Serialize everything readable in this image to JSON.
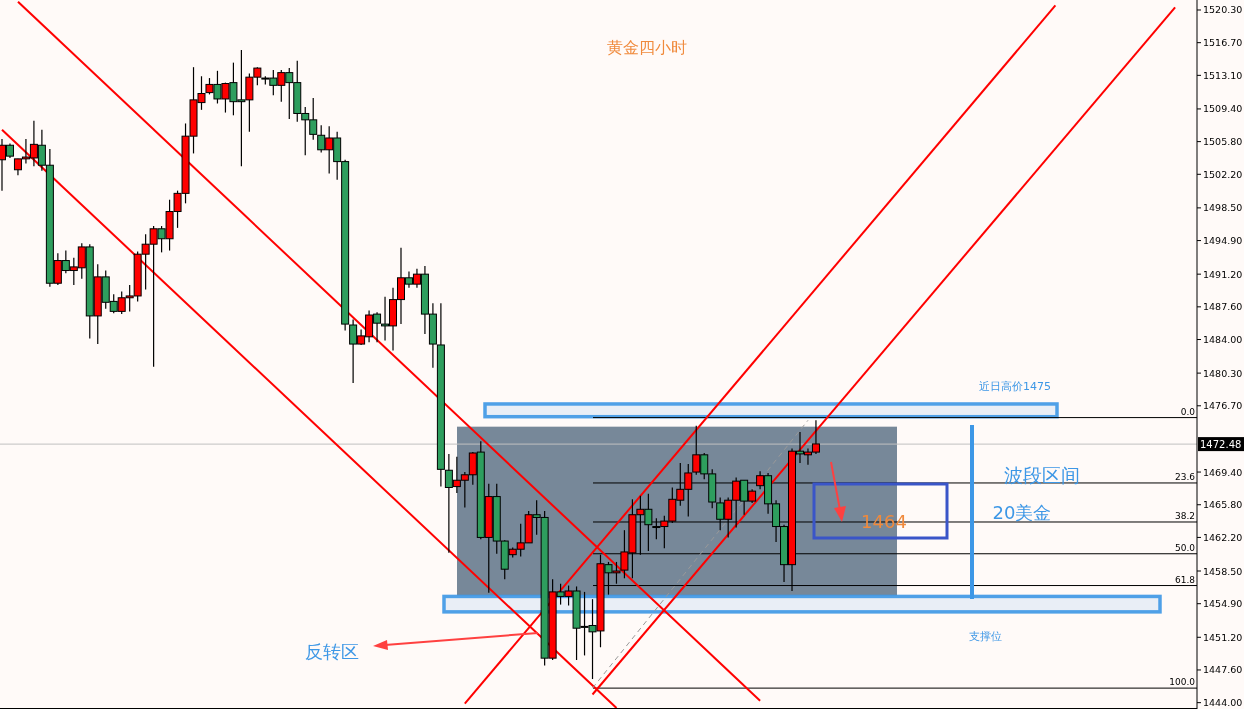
{
  "chart_data": {
    "type": "candlestick",
    "title": "黄金四小时",
    "categories": [
      null,
      null,
      null,
      null,
      null,
      null,
      null,
      null,
      null,
      null,
      null,
      null,
      null,
      null,
      null,
      null,
      null,
      null,
      null,
      null,
      null,
      null,
      null,
      null,
      null,
      null,
      null,
      null,
      null,
      null,
      null,
      null,
      null,
      null,
      null,
      null,
      null,
      null,
      null,
      null,
      null,
      null,
      null,
      null,
      null,
      null,
      null,
      null,
      null,
      null,
      null,
      null,
      null,
      null,
      null,
      null,
      null,
      null,
      null,
      null,
      null,
      null,
      null,
      null,
      null,
      null,
      null,
      null,
      null,
      null,
      null,
      null,
      null,
      null,
      null,
      null,
      null,
      null,
      null,
      null,
      null,
      null,
      null,
      null,
      null,
      null,
      null,
      null,
      null,
      null,
      null,
      null,
      null,
      null,
      null,
      null,
      null,
      null,
      null,
      null,
      null,
      null,
      null,
      null,
      null,
      null,
      null,
      null,
      null,
      null,
      null,
      null,
      null,
      null,
      null,
      null,
      null,
      null,
      null,
      null,
      null,
      null,
      null,
      null,
      null,
      null,
      null,
      null,
      null,
      null,
      null,
      null,
      null,
      null,
      null,
      null,
      null,
      null,
      null,
      null,
      null,
      null,
      null,
      null,
      null,
      null,
      null,
      null,
      null,
      null
    ],
    "ohlc": [
      [
        1503.8,
        1506.1,
        1500.4,
        1505.4
      ],
      [
        1505.4,
        1505.6,
        1504.0,
        1504.2
      ],
      [
        1502.7,
        1503.9,
        1502.1,
        1503.9
      ],
      [
        1503.9,
        1506.1,
        1503.4,
        1504.1
      ],
      [
        1504.0,
        1508.1,
        1503.1,
        1505.5
      ],
      [
        1505.4,
        1507.1,
        1502.6,
        1503.2
      ],
      [
        1503.2,
        1505.0,
        1489.8,
        1490.2
      ],
      [
        1490.2,
        1493.5,
        1490.0,
        1492.7
      ],
      [
        1492.7,
        1493.8,
        1491.3,
        1491.6
      ],
      [
        1491.6,
        1493.0,
        1490.0,
        1492.0
      ],
      [
        1491.9,
        1494.6,
        1490.7,
        1494.2
      ],
      [
        1494.2,
        1494.5,
        1484.1,
        1486.6
      ],
      [
        1486.6,
        1492.3,
        1483.5,
        1490.9
      ],
      [
        1490.9,
        1491.6,
        1487.4,
        1488.1
      ],
      [
        1488.2,
        1489.0,
        1486.9,
        1487.1
      ],
      [
        1487.1,
        1489.3,
        1486.8,
        1488.6
      ],
      [
        1488.6,
        1490.0,
        1487.1,
        1488.8
      ],
      [
        1488.8,
        1493.7,
        1488.2,
        1493.4
      ],
      [
        1493.4,
        1495.6,
        1489.5,
        1494.5
      ],
      [
        1494.5,
        1496.5,
        1481.0,
        1496.2
      ],
      [
        1496.2,
        1496.5,
        1493.6,
        1495.1
      ],
      [
        1495.1,
        1499.4,
        1493.8,
        1498.1
      ],
      [
        1498.1,
        1500.4,
        1496.3,
        1500.1
      ],
      [
        1500.1,
        1507.8,
        1499.0,
        1506.4
      ],
      [
        1506.4,
        1514.0,
        1504.5,
        1510.4
      ],
      [
        1510.1,
        1513.0,
        1509.3,
        1511.1
      ],
      [
        1511.2,
        1512.8,
        1511.0,
        1512.1
      ],
      [
        1512.1,
        1513.6,
        1510.0,
        1510.5
      ],
      [
        1510.5,
        1512.3,
        1509.0,
        1512.2
      ],
      [
        1512.3,
        1514.5,
        1508.7,
        1510.2
      ],
      [
        1510.4,
        1515.9,
        1503.1,
        1510.2
      ],
      [
        1510.4,
        1513.3,
        1506.9,
        1512.9
      ],
      [
        1512.9,
        1514.0,
        1512.0,
        1513.9
      ],
      [
        1512.8,
        1513.0,
        1512.1,
        1512.8
      ],
      [
        1512.8,
        1513.7,
        1510.9,
        1512.0
      ],
      [
        1512.0,
        1513.7,
        1510.2,
        1513.4
      ],
      [
        1513.4,
        1513.9,
        1508.3,
        1512.3
      ],
      [
        1512.3,
        1514.7,
        1508.0,
        1508.9
      ],
      [
        1508.9,
        1509.6,
        1504.3,
        1508.2
      ],
      [
        1508.2,
        1510.6,
        1506.0,
        1506.6
      ],
      [
        1506.5,
        1507.6,
        1504.6,
        1504.9
      ],
      [
        1504.9,
        1507.5,
        1502.3,
        1506.2
      ],
      [
        1506.2,
        1506.9,
        1501.6,
        1503.6
      ],
      [
        1503.6,
        1503.8,
        1485.0,
        1485.7
      ],
      [
        1485.6,
        1486.2,
        1479.2,
        1483.5
      ],
      [
        1483.5,
        1485.1,
        1483.4,
        1484.4
      ],
      [
        1484.3,
        1487.2,
        1483.7,
        1486.7
      ],
      [
        1486.8,
        1487.0,
        1483.7,
        1485.8
      ],
      [
        1485.7,
        1488.7,
        1483.9,
        1485.5
      ],
      [
        1485.5,
        1489.7,
        1482.8,
        1488.4
      ],
      [
        1488.4,
        1494.1,
        1485.7,
        1490.8
      ],
      [
        1490.8,
        1491.5,
        1489.7,
        1490.1
      ],
      [
        1490.1,
        1491.8,
        1489.7,
        1491.2
      ],
      [
        1491.2,
        1492.1,
        1484.6,
        1486.8
      ],
      [
        1486.8,
        1488.0,
        1480.9,
        1483.5
      ],
      [
        1483.4,
        1488.0,
        1467.8,
        1469.7
      ],
      [
        1469.6,
        1471.4,
        1460.5,
        1467.7
      ],
      [
        1467.8,
        1471.1,
        1467.1,
        1468.5
      ],
      [
        1468.5,
        1469.4,
        1465.5,
        1469.1
      ],
      [
        1469.1,
        1471.6,
        1468.0,
        1471.5
      ],
      [
        1471.6,
        1472.8,
        1462.0,
        1462.2
      ],
      [
        1462.2,
        1468.1,
        1456.1,
        1466.7
      ],
      [
        1466.7,
        1468.1,
        1460.4,
        1461.8
      ],
      [
        1461.8,
        1461.9,
        1457.6,
        1458.7
      ],
      [
        1460.3,
        1461.1,
        1460.0,
        1460.9
      ],
      [
        1460.9,
        1463.7,
        1460.1,
        1461.6
      ],
      [
        1461.6,
        1465.1,
        1461.6,
        1464.7
      ],
      [
        1464.7,
        1466.3,
        1462.5,
        1464.4
      ],
      [
        1464.4,
        1465.1,
        1448.1,
        1448.9
      ],
      [
        1448.9,
        1457.6,
        1448.7,
        1456.2
      ],
      [
        1456.2,
        1457.1,
        1454.8,
        1455.7
      ],
      [
        1455.7,
        1456.9,
        1454.7,
        1456.3
      ],
      [
        1456.3,
        1456.8,
        1448.7,
        1452.2
      ],
      [
        1452.4,
        1456.2,
        1449.2,
        1452.4
      ],
      [
        1452.5,
        1455.4,
        1446.6,
        1451.8
      ],
      [
        1451.9,
        1460.3,
        1450.1,
        1459.3
      ],
      [
        1459.2,
        1459.5,
        1455.9,
        1458.3
      ],
      [
        1458.3,
        1459.5,
        1457.1,
        1458.5
      ],
      [
        1458.6,
        1463.0,
        1457.7,
        1460.6
      ],
      [
        1460.5,
        1466.4,
        1457.7,
        1464.7
      ],
      [
        1464.7,
        1466.8,
        1460.3,
        1465.3
      ],
      [
        1465.3,
        1467.0,
        1460.7,
        1463.6
      ],
      [
        1463.4,
        1464.3,
        1462.0,
        1463.4
      ],
      [
        1463.4,
        1464.6,
        1461.0,
        1464.0
      ],
      [
        1464.0,
        1467.7,
        1463.8,
        1466.4
      ],
      [
        1466.3,
        1470.4,
        1465.7,
        1467.5
      ],
      [
        1467.5,
        1470.3,
        1464.5,
        1469.3
      ],
      [
        1469.4,
        1474.5,
        1469.1,
        1471.3
      ],
      [
        1471.3,
        1471.5,
        1468.6,
        1469.2
      ],
      [
        1469.2,
        1469.7,
        1465.4,
        1466.1
      ],
      [
        1466.0,
        1466.6,
        1463.0,
        1464.2
      ],
      [
        1464.2,
        1466.6,
        1462.2,
        1466.3
      ],
      [
        1466.3,
        1468.8,
        1463.3,
        1468.4
      ],
      [
        1468.5,
        1468.5,
        1464.7,
        1466.2
      ],
      [
        1466.2,
        1467.5,
        1466.0,
        1467.3
      ],
      [
        1467.9,
        1469.5,
        1467.5,
        1469.0
      ],
      [
        1469.0,
        1469.3,
        1464.8,
        1465.9
      ],
      [
        1465.9,
        1466.3,
        1461.7,
        1463.4
      ],
      [
        1463.4,
        1463.6,
        1457.3,
        1459.2
      ],
      [
        1459.2,
        1472.0,
        1456.3,
        1471.7
      ],
      [
        1471.7,
        1473.8,
        1470.4,
        1471.4
      ],
      [
        1471.3,
        1472.0,
        1470.2,
        1471.6
      ],
      [
        1471.6,
        1475.1,
        1471.4,
        1472.5
      ],
      null,
      null,
      null,
      null,
      null,
      null,
      null,
      null,
      null,
      null,
      null,
      null,
      null,
      null,
      null,
      null,
      null,
      null,
      null,
      null,
      null,
      null,
      null,
      null,
      null,
      null,
      null,
      null,
      null,
      null,
      null,
      null,
      null,
      null,
      null,
      null,
      null,
      null,
      null,
      null,
      null,
      null,
      null,
      null,
      null,
      null,
      null
    ],
    "colors": [
      "#ff0000",
      "#2e9e5e",
      "#ff0000",
      "#ff0000",
      "#ff0000",
      "#2e9e5e",
      "#2e9e5e",
      "#ff0000",
      "#2e9e5e",
      "#ff0000",
      "#ff0000",
      "#2e9e5e",
      "#ff0000",
      "#2e9e5e",
      "#2e9e5e",
      "#ff0000",
      "#ff0000",
      "#ff0000",
      "#ff0000",
      "#ff0000",
      "#2e9e5e",
      "#ff0000",
      "#ff0000",
      "#ff0000",
      "#ff0000",
      "#ff0000",
      "#ff0000",
      "#2e9e5e",
      "#ff0000",
      "#2e9e5e",
      "#2e9e5e",
      "#ff0000",
      "#ff0000",
      "#2e9e5e",
      "#2e9e5e",
      "#ff0000",
      "#2e9e5e",
      "#2e9e5e",
      "#2e9e5e",
      "#2e9e5e",
      "#2e9e5e",
      "#ff0000",
      "#2e9e5e",
      "#2e9e5e",
      "#2e9e5e",
      "#ff0000",
      "#ff0000",
      "#2e9e5e",
      "#2e9e5e",
      "#ff0000",
      "#ff0000",
      "#2e9e5e",
      "#ff0000",
      "#2e9e5e",
      "#2e9e5e",
      "#2e9e5e",
      "#2e9e5e",
      "#ff0000",
      "#ff0000",
      "#ff0000",
      "#2e9e5e",
      "#ff0000",
      "#2e9e5e",
      "#2e9e5e",
      "#ff0000",
      "#ff0000",
      "#ff0000",
      "#2e9e5e",
      "#2e9e5e",
      "#ff0000",
      "#2e9e5e",
      "#ff0000",
      "#2e9e5e",
      "#2e9e5e",
      "#2e9e5e",
      "#ff0000",
      "#2e9e5e",
      "#ff0000",
      "#ff0000",
      "#ff0000",
      "#ff0000",
      "#2e9e5e",
      "#2e9e5e",
      "#ff0000",
      "#ff0000",
      "#ff0000",
      "#ff0000",
      "#ff0000",
      "#2e9e5e",
      "#2e9e5e",
      "#2e9e5e",
      "#ff0000",
      "#ff0000",
      "#2e9e5e",
      "#ff0000",
      "#ff0000",
      "#2e9e5e",
      "#2e9e5e",
      "#2e9e5e",
      "#ff0000",
      "#2e9e5e",
      "#ff0000",
      "#ff0000",
      null,
      null,
      null,
      null,
      null,
      null,
      null,
      null,
      null,
      null,
      null,
      null,
      null,
      null,
      null,
      null,
      null,
      null,
      null,
      null,
      null,
      null,
      null,
      null,
      null,
      null,
      null,
      null,
      null,
      null,
      null,
      null,
      null,
      null,
      null,
      null,
      null,
      null,
      null,
      null,
      null,
      null,
      null,
      null,
      null,
      null,
      null
    ],
    "series": [
      {
        "type": "line",
        "color": "#ff0000",
        "values": [
          null,
          null,
          1521.2,
          null,
          null,
          null,
          null,
          null,
          null,
          null,
          null,
          null,
          null,
          null,
          null,
          null,
          null,
          null,
          null,
          null,
          null,
          null,
          null,
          null,
          null,
          null,
          null,
          null,
          null,
          null,
          null,
          null,
          null,
          null,
          null,
          null,
          null,
          null,
          null,
          null,
          null,
          null,
          null,
          null,
          null,
          null,
          null,
          null,
          null,
          null,
          null,
          null,
          null,
          null,
          null,
          null,
          null,
          null,
          null,
          null,
          null,
          null,
          null,
          null,
          null,
          null,
          null,
          null,
          null,
          null,
          null,
          null,
          null,
          null,
          null,
          null,
          null,
          null,
          null,
          null,
          null,
          null,
          null,
          null,
          null,
          null,
          null,
          null,
          null,
          null,
          null,
          null,
          null,
          null,
          null,
          1444.2,
          null,
          null,
          null,
          null,
          null,
          null,
          null,
          null,
          null,
          null,
          null,
          null,
          null,
          null,
          null,
          null,
          null,
          null,
          null,
          null,
          null,
          null,
          null,
          null,
          null,
          null,
          null,
          null,
          null,
          null,
          null,
          null,
          null,
          null,
          null,
          null,
          null,
          null,
          null,
          null,
          null,
          null,
          null,
          null,
          null,
          null,
          null,
          null,
          null,
          null,
          null,
          null,
          null,
          null
        ]
      },
      {
        "type": "line",
        "color": "#ff0000",
        "values": [
          1507.1,
          null,
          null,
          null,
          null,
          null,
          null,
          null,
          null,
          null,
          null,
          null,
          null,
          null,
          null,
          null,
          null,
          null,
          null,
          null,
          null,
          null,
          null,
          null,
          null,
          null,
          null,
          null,
          null,
          null,
          null,
          null,
          null,
          null,
          null,
          null,
          null,
          null,
          null,
          null,
          null,
          null,
          null,
          null,
          null,
          null,
          null,
          null,
          null,
          null,
          null,
          null,
          null,
          null,
          null,
          null,
          null,
          null,
          null,
          null,
          null,
          null,
          null,
          null,
          null,
          null,
          null,
          null,
          null,
          null,
          null,
          null,
          null,
          null,
          null,
          null,
          null,
          1443.4,
          null,
          null,
          null,
          null,
          null,
          null,
          null,
          null,
          null,
          null,
          null,
          null,
          null,
          null,
          null,
          null,
          null,
          null,
          null,
          null,
          null,
          null,
          null,
          null,
          null,
          null,
          null,
          null,
          null,
          null,
          null,
          null,
          null,
          null,
          null,
          null,
          null,
          null,
          null,
          null,
          null,
          null,
          null,
          null,
          null,
          null,
          null,
          null,
          null,
          null,
          null,
          null,
          null,
          null,
          null,
          null,
          null,
          null,
          null,
          null,
          null,
          null,
          null,
          null,
          null,
          null,
          null,
          null,
          null,
          null,
          null,
          null
        ]
      },
      {
        "type": "line",
        "color": "#ff0000",
        "values": [
          null,
          null,
          null,
          null,
          null,
          null,
          null,
          null,
          null,
          null,
          null,
          null,
          null,
          null,
          null,
          null,
          null,
          null,
          null,
          null,
          null,
          null,
          null,
          null,
          null,
          null,
          null,
          null,
          null,
          null,
          null,
          null,
          null,
          null,
          null,
          null,
          null,
          null,
          null,
          null,
          null,
          null,
          null,
          null,
          null,
          null,
          null,
          null,
          null,
          null,
          null,
          null,
          null,
          null,
          null,
          null,
          null,
          null,
          1443.9,
          null,
          null,
          null,
          null,
          null,
          null,
          null,
          null,
          null,
          null,
          null,
          null,
          null,
          null,
          null,
          null,
          null,
          null,
          null,
          null,
          null,
          null,
          null,
          null,
          null,
          null,
          null,
          null,
          null,
          null,
          null,
          null,
          null,
          null,
          null,
          null,
          null,
          null,
          null,
          null,
          null,
          null,
          null,
          null,
          null,
          null,
          null,
          null,
          null,
          null,
          null,
          null,
          null,
          null,
          null,
          null,
          null,
          null,
          null,
          null,
          null,
          null,
          null,
          null,
          null,
          null,
          null,
          null,
          null,
          null,
          null,
          null,
          null,
          1520.8,
          null,
          null,
          null,
          null,
          null,
          null,
          null,
          null,
          null,
          null,
          null,
          null,
          null,
          null,
          null,
          null,
          null
        ]
      },
      {
        "type": "line",
        "color": "#ff0000",
        "values": [
          null,
          null,
          null,
          null,
          null,
          null,
          null,
          null,
          null,
          null,
          null,
          null,
          null,
          null,
          null,
          null,
          null,
          null,
          null,
          null,
          null,
          null,
          null,
          null,
          null,
          null,
          null,
          null,
          null,
          null,
          null,
          null,
          null,
          null,
          null,
          null,
          null,
          null,
          null,
          null,
          null,
          null,
          null,
          null,
          null,
          null,
          null,
          null,
          null,
          null,
          null,
          null,
          null,
          null,
          null,
          null,
          null,
          null,
          null,
          null,
          null,
          null,
          null,
          null,
          null,
          null,
          null,
          null,
          null,
          null,
          null,
          null,
          null,
          null,
          1444.9,
          null,
          null,
          null,
          null,
          null,
          null,
          null,
          null,
          null,
          null,
          null,
          null,
          null,
          null,
          null,
          null,
          null,
          null,
          null,
          null,
          null,
          null,
          null,
          null,
          null,
          null,
          null,
          null,
          null,
          null,
          null,
          null,
          null,
          null,
          null,
          null,
          null,
          null,
          null,
          null,
          null,
          null,
          null,
          null,
          null,
          null,
          null,
          null,
          null,
          null,
          null,
          null,
          null,
          null,
          null,
          null,
          null,
          null,
          null,
          null,
          null,
          null,
          null,
          null,
          null,
          null,
          null,
          null,
          null,
          null,
          null,
          null,
          1520.6,
          null,
          null
        ]
      },
      {
        "type": "line",
        "color": "#999999",
        "line_style": "dashed",
        "values": [
          null,
          null,
          null,
          null,
          null,
          null,
          null,
          null,
          null,
          null,
          null,
          null,
          null,
          null,
          null,
          null,
          null,
          null,
          null,
          null,
          null,
          null,
          null,
          null,
          null,
          null,
          null,
          null,
          null,
          null,
          null,
          null,
          null,
          null,
          null,
          null,
          null,
          null,
          null,
          null,
          null,
          null,
          null,
          null,
          null,
          null,
          null,
          null,
          null,
          null,
          null,
          null,
          null,
          null,
          null,
          null,
          null,
          null,
          null,
          null,
          null,
          null,
          null,
          null,
          null,
          null,
          null,
          null,
          null,
          null,
          null,
          null,
          null,
          null,
          1445.6,
          null,
          null,
          null,
          null,
          null,
          null,
          null,
          null,
          null,
          null,
          null,
          null,
          null,
          null,
          null,
          null,
          null,
          null,
          null,
          null,
          null,
          null,
          null,
          null,
          null,
          null,
          1475.1,
          null,
          null,
          null,
          null,
          null,
          null,
          null,
          null,
          null,
          null,
          null,
          null,
          null,
          null,
          null,
          null,
          null,
          null,
          null,
          null,
          null,
          null,
          null,
          null,
          null,
          null,
          null,
          null,
          null,
          null,
          null,
          null,
          null,
          null,
          null,
          null,
          null,
          null,
          null,
          null,
          null,
          null,
          null,
          null,
          null,
          null,
          null,
          null
        ]
      }
    ],
    "ylim": [
      1443.3,
      1521.4
    ],
    "yticks": [
      {
        "value": 1520.3,
        "label": "1520.30"
      },
      {
        "value": 1516.7,
        "label": "1516.70"
      },
      {
        "value": 1513.1,
        "label": "1513.10"
      },
      {
        "value": 1509.4,
        "label": "1509.40"
      },
      {
        "value": 1505.8,
        "label": "1505.80"
      },
      {
        "value": 1502.2,
        "label": "1502.20"
      },
      {
        "value": 1498.5,
        "label": "1498.50"
      },
      {
        "value": 1494.9,
        "label": "1494.90"
      },
      {
        "value": 1491.2,
        "label": "1491.20"
      },
      {
        "value": 1487.6,
        "label": "1487.60"
      },
      {
        "value": 1484,
        "label": "1484.00"
      },
      {
        "value": 1480.3,
        "label": "1480.30"
      },
      {
        "value": 1476.7,
        "label": "1476.70"
      },
      {
        "value": 1469.4,
        "label": "1469.40"
      },
      {
        "value": 1465.8,
        "label": "1465.80"
      },
      {
        "value": 1462.2,
        "label": "1462.20"
      },
      {
        "value": 1458.5,
        "label": "1458.50"
      },
      {
        "value": 1454.9,
        "label": "1454.90"
      },
      {
        "value": 1451.2,
        "label": "1451.20"
      },
      {
        "value": 1447.6,
        "label": "1447.60"
      },
      {
        "value": 1444,
        "label": "1444.00"
      }
    ],
    "ref_lines": [
      {
        "axis": "y",
        "value": 1472.48,
        "label": "1472.48",
        "color": "#c0c0c0"
      },
      {
        "axis": "y",
        "value": 1475.4,
        "color": "#000000"
      },
      {
        "axis": "y",
        "value": 1468.2,
        "color": "#000000"
      },
      {
        "axis": "y",
        "value": 1463.9,
        "color": "#000000"
      },
      {
        "axis": "y",
        "value": 1460.4,
        "color": "#000000"
      },
      {
        "axis": "y",
        "value": 1456.9,
        "color": "#000000"
      },
      {
        "axis": "y",
        "value": 1445.6,
        "color": "#000000"
      }
    ],
    "bands": [
      {
        "axis": "y",
        "from": 1455.8,
        "to": 1474.4,
        "color": "#778899"
      },
      {
        "axis": "y",
        "from": 1475.5,
        "to": 1476.9,
        "label": "近日高价1475",
        "color": "#3d97e6"
      },
      {
        "axis": "y",
        "from": 1454.0,
        "to": 1455.7,
        "label": "支撑位",
        "color": "#3d97e6"
      }
    ],
    "annotations": [
      "波段区间",
      "20美金",
      {
        "text": "1464",
        "y": 1464
      },
      "反转区",
      {
        "text": "0.0",
        "y": 1475.4
      },
      {
        "text": "23.6",
        "y": 1468.2
      },
      {
        "text": "38.2",
        "y": 1463.9
      },
      {
        "text": "50.0",
        "y": 1460.4
      },
      {
        "text": "61.8",
        "y": 1456.9
      },
      {
        "text": "100.0",
        "y": 1445.6
      }
    ],
    "grid": false
  }
}
